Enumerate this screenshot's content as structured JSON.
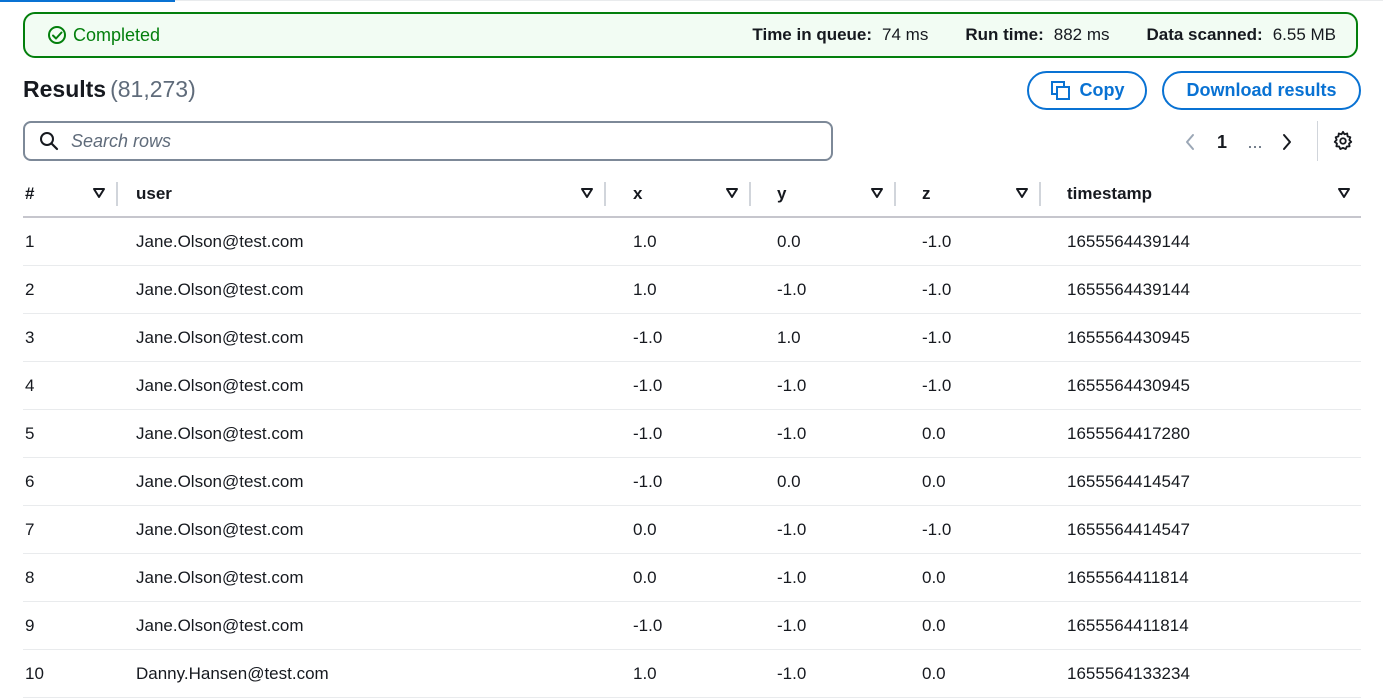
{
  "status": {
    "label": "Completed",
    "time_in_queue_label": "Time in queue:",
    "time_in_queue_value": "74 ms",
    "run_time_label": "Run time:",
    "run_time_value": "882 ms",
    "data_scanned_label": "Data scanned:",
    "data_scanned_value": "6.55 MB"
  },
  "results": {
    "title": "Results",
    "count": "(81,273)",
    "copy_label": "Copy",
    "download_label": "Download results",
    "search_placeholder": "Search rows"
  },
  "pagination": {
    "current_page": "1",
    "ellipsis": "..."
  },
  "table": {
    "headers": [
      "#",
      "user",
      "x",
      "y",
      "z",
      "timestamp"
    ],
    "rows": [
      [
        "1",
        "Jane.Olson@test.com",
        "1.0",
        "0.0",
        "-1.0",
        "1655564439144"
      ],
      [
        "2",
        "Jane.Olson@test.com",
        "1.0",
        "-1.0",
        "-1.0",
        "1655564439144"
      ],
      [
        "3",
        "Jane.Olson@test.com",
        "-1.0",
        "1.0",
        "-1.0",
        "1655564430945"
      ],
      [
        "4",
        "Jane.Olson@test.com",
        "-1.0",
        "-1.0",
        "-1.0",
        "1655564430945"
      ],
      [
        "5",
        "Jane.Olson@test.com",
        "-1.0",
        "-1.0",
        "0.0",
        "1655564417280"
      ],
      [
        "6",
        "Jane.Olson@test.com",
        "-1.0",
        "0.0",
        "0.0",
        "1655564414547"
      ],
      [
        "7",
        "Jane.Olson@test.com",
        "0.0",
        "-1.0",
        "-1.0",
        "1655564414547"
      ],
      [
        "8",
        "Jane.Olson@test.com",
        "0.0",
        "-1.0",
        "0.0",
        "1655564411814"
      ],
      [
        "9",
        "Jane.Olson@test.com",
        "-1.0",
        "-1.0",
        "0.0",
        "1655564411814"
      ],
      [
        "10",
        "Danny.Hansen@test.com",
        "1.0",
        "-1.0",
        "0.0",
        "1655564133234"
      ]
    ]
  },
  "icons": {
    "status": "check-circle-icon",
    "copy": "copy-icon",
    "search": "search-icon",
    "prev": "chevron-left-icon",
    "next": "chevron-right-icon",
    "settings": "gear-icon",
    "sort": "sort-down-icon"
  },
  "colors": {
    "success": "#037f0c",
    "success_bg": "#f2fcf3",
    "accent": "#0972d3"
  }
}
